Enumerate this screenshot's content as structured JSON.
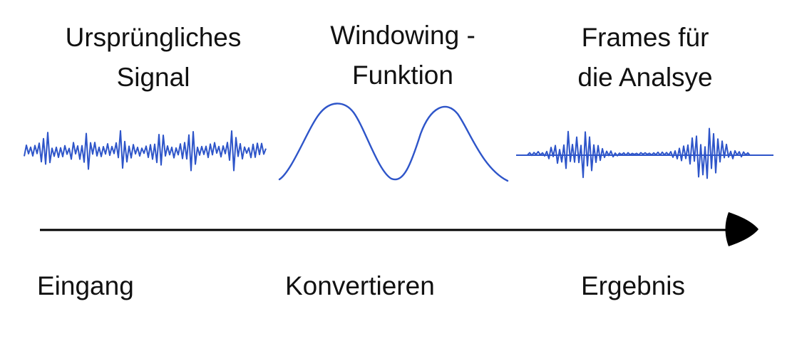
{
  "titles": {
    "original_signal": [
      "Ursprüngliches",
      "Signal"
    ],
    "windowing_function": [
      "Windowing -",
      "Funktion"
    ],
    "frames": [
      "Frames für",
      "die Analsye"
    ]
  },
  "stages": {
    "input": "Eingang",
    "convert": "Konvertieren",
    "result": "Ergebnis"
  },
  "colors": {
    "signal": "#2e55c9",
    "arrow": "#000000",
    "text": "#111111"
  },
  "icons": {
    "arrow": "arrow-right-icon"
  }
}
